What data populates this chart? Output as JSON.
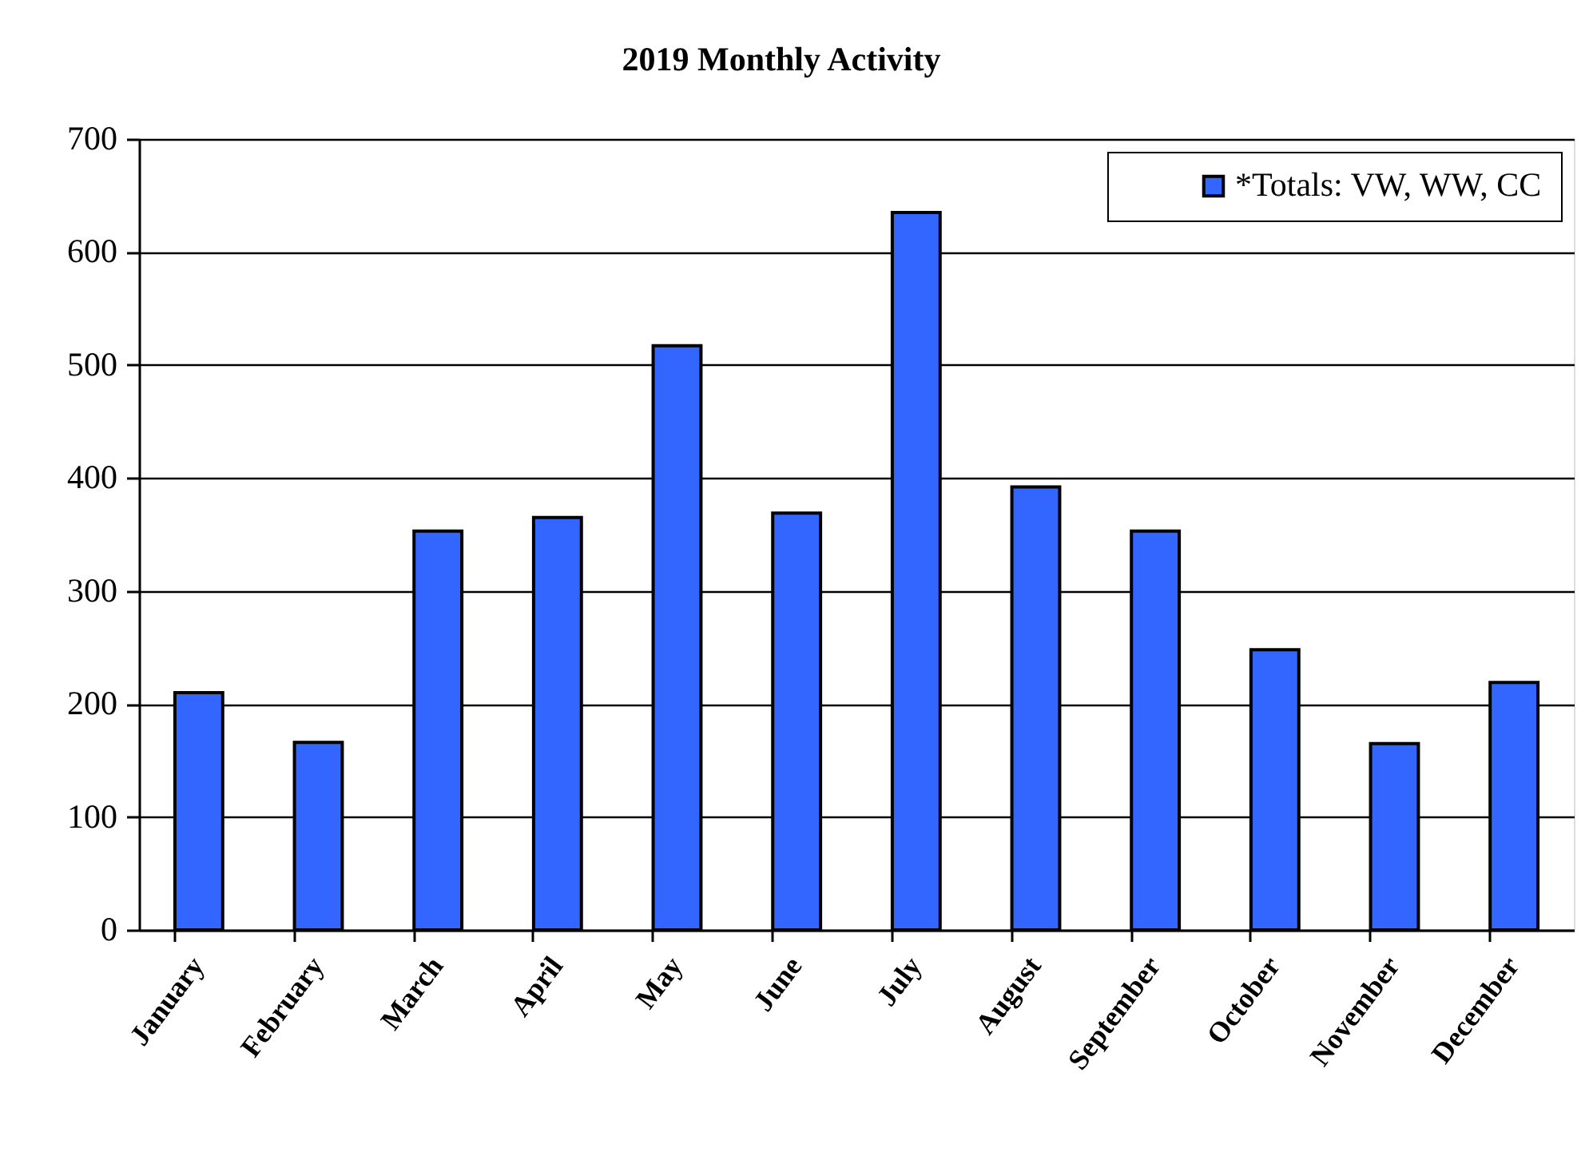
{
  "chart_data": {
    "type": "bar",
    "title": "2019 Monthly Activity",
    "categories": [
      "January",
      "February",
      "March",
      "April",
      "May",
      "June",
      "July",
      "August",
      "September",
      "October",
      "November",
      "December"
    ],
    "series": [
      {
        "name": "*Totals: VW, WW, CC",
        "color": "#3366ff",
        "values": [
          210,
          166,
          353,
          365,
          517,
          369,
          635,
          392,
          353,
          248,
          165,
          219
        ]
      }
    ],
    "ylim": [
      0,
      700
    ],
    "yticks": [
      0,
      100,
      200,
      300,
      400,
      500,
      600,
      700
    ],
    "grid": "y",
    "legend": "top right"
  }
}
